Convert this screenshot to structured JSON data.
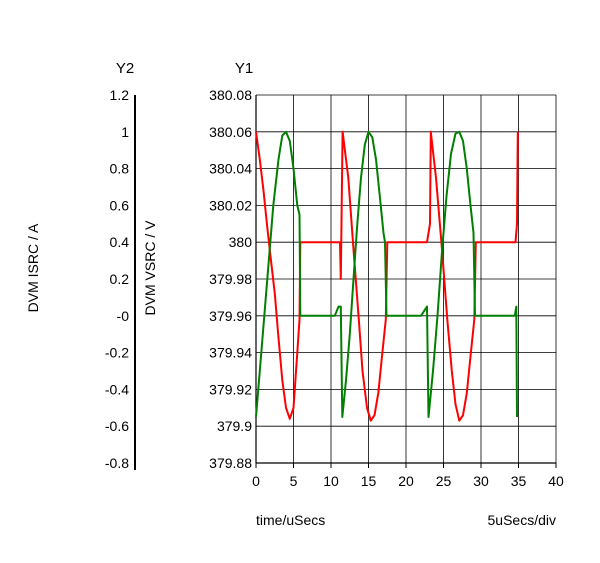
{
  "chart_data": {
    "type": "line",
    "axis_header_y2": "Y2",
    "axis_header_y1": "Y1",
    "xlabel": "time/uSecs",
    "x_scale_label": "5uSecs/div",
    "y2label": "DVM ISRC / A",
    "y1label": "DVM VSRC / V",
    "xlim": [
      0,
      40
    ],
    "x_ticks": [
      "0",
      "5",
      "10",
      "15",
      "20",
      "25",
      "30",
      "35",
      "40"
    ],
    "y1lim": [
      379.88,
      380.08
    ],
    "y1_ticks": [
      "380.08",
      "380.06",
      "380.04",
      "380.02",
      "380",
      "379.98",
      "379.96",
      "379.94",
      "379.92",
      "379.9",
      "379.88"
    ],
    "y2lim": [
      -0.8,
      1.2
    ],
    "y2_ticks": [
      "1.2",
      "1",
      "0.8",
      "0.6",
      "0.4",
      "0.2",
      "-0",
      "-0.2",
      "-0.4",
      "-0.6",
      "-0.8"
    ],
    "grid": true,
    "series": [
      {
        "axis": "y1",
        "color": "#ff0000",
        "points": [
          [
            0,
            380.06
          ],
          [
            0.5,
            380.045
          ],
          [
            1,
            380.028
          ],
          [
            1.5,
            380.008
          ],
          [
            2,
            379.99
          ],
          [
            2.5,
            379.972
          ],
          [
            3,
            379.948
          ],
          [
            3.5,
            379.925
          ],
          [
            4,
            379.91
          ],
          [
            4.5,
            379.904
          ],
          [
            5,
            379.91
          ],
          [
            5.5,
            379.94
          ],
          [
            5.8,
            379.958
          ],
          [
            5.9,
            380
          ],
          [
            8,
            380
          ],
          [
            10,
            380
          ],
          [
            11.2,
            380
          ],
          [
            11.3,
            379.98
          ],
          [
            11.55,
            380.06
          ],
          [
            12.3,
            380.035
          ],
          [
            13,
            379.996
          ],
          [
            13.7,
            379.958
          ],
          [
            14.2,
            379.93
          ],
          [
            14.8,
            379.91
          ],
          [
            15.3,
            379.903
          ],
          [
            15.8,
            379.906
          ],
          [
            16.3,
            379.918
          ],
          [
            16.8,
            379.938
          ],
          [
            17.3,
            379.958
          ],
          [
            17.5,
            380
          ],
          [
            20,
            380
          ],
          [
            22.8,
            380
          ],
          [
            23.2,
            380.01
          ],
          [
            23.3,
            380.06
          ],
          [
            24,
            380.035
          ],
          [
            24.8,
            379.996
          ],
          [
            25.5,
            379.958
          ],
          [
            26.1,
            379.93
          ],
          [
            26.6,
            379.912
          ],
          [
            27.1,
            379.903
          ],
          [
            27.6,
            379.906
          ],
          [
            28.1,
            379.918
          ],
          [
            28.6,
            379.938
          ],
          [
            29.1,
            379.958
          ],
          [
            29.3,
            380
          ],
          [
            32,
            380
          ],
          [
            34.6,
            380
          ],
          [
            34.8,
            380.01
          ],
          [
            34.9,
            380.06
          ]
        ]
      },
      {
        "axis": "y2",
        "color": "#008000",
        "points": [
          [
            0,
            -0.55
          ],
          [
            0.7,
            -0.2
          ],
          [
            1.5,
            0.2
          ],
          [
            2.3,
            0.6
          ],
          [
            3,
            0.85
          ],
          [
            3.5,
            0.98
          ],
          [
            4,
            1
          ],
          [
            4.5,
            0.95
          ],
          [
            5,
            0.8
          ],
          [
            5.5,
            0.6
          ],
          [
            5.8,
            0.55
          ],
          [
            5.9,
            0
          ],
          [
            8,
            0
          ],
          [
            10.5,
            0
          ],
          [
            11,
            0.05
          ],
          [
            11.3,
            0.05
          ],
          [
            11.5,
            -0.55
          ],
          [
            12,
            -0.35
          ],
          [
            12.5,
            -0.1
          ],
          [
            13,
            0.2
          ],
          [
            13.5,
            0.5
          ],
          [
            14,
            0.75
          ],
          [
            14.5,
            0.93
          ],
          [
            15,
            1
          ],
          [
            15.5,
            0.97
          ],
          [
            16,
            0.85
          ],
          [
            16.5,
            0.65
          ],
          [
            17,
            0.45
          ],
          [
            17.2,
            0.4
          ],
          [
            17.4,
            0
          ],
          [
            20,
            0
          ],
          [
            22,
            0
          ],
          [
            22.8,
            0.05
          ],
          [
            23,
            -0.55
          ],
          [
            23.6,
            -0.3
          ],
          [
            24.2,
            0
          ],
          [
            24.8,
            0.35
          ],
          [
            25.4,
            0.65
          ],
          [
            26,
            0.88
          ],
          [
            26.6,
            0.99
          ],
          [
            27.1,
            1
          ],
          [
            27.6,
            0.95
          ],
          [
            28.1,
            0.8
          ],
          [
            28.6,
            0.6
          ],
          [
            29,
            0.45
          ],
          [
            29.2,
            0
          ],
          [
            32,
            0
          ],
          [
            34.5,
            0
          ],
          [
            34.7,
            0.05
          ],
          [
            34.8,
            -0.55
          ]
        ]
      }
    ]
  }
}
